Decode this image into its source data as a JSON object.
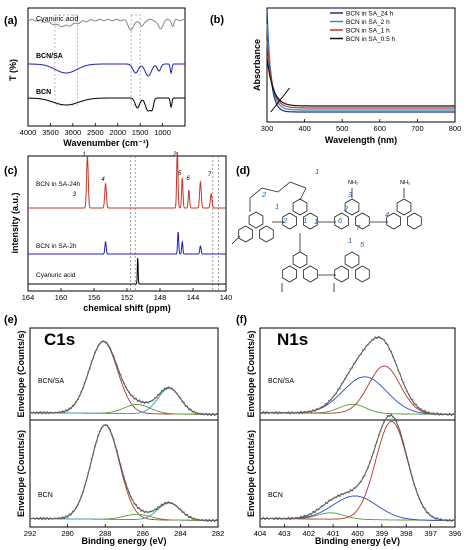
{
  "panels": {
    "a": "(a)",
    "b": "(b)",
    "c": "(c)",
    "d": "(d)",
    "e": "(e)",
    "f": "(f)"
  },
  "structure": {
    "labels": [
      "1",
      "2",
      "1",
      "2",
      "1",
      "2",
      "3",
      "6",
      "7",
      "1",
      "1",
      "5",
      "4"
    ],
    "nh2": "NH₂",
    "nh": "N\nH"
  },
  "chart_data": [
    {
      "id": "a",
      "type": "line",
      "xlabel": "Wavenumber (cm⁻¹)",
      "ylabel": "T (%)",
      "xlim": [
        4000,
        500
      ],
      "x_ticks": [
        4000,
        3500,
        3000,
        2500,
        2000,
        1500,
        1000
      ],
      "series": [
        {
          "name": "Cyanuric acid",
          "color": "#888888"
        },
        {
          "name": "BCN/SA",
          "color": "#1f1fb4"
        },
        {
          "name": "BCN",
          "color": "#000000"
        }
      ]
    },
    {
      "id": "b",
      "type": "line",
      "xlabel": "Wavelength (nm)",
      "ylabel": "Absorbance",
      "xlim": [
        300,
        800
      ],
      "x_ticks": [
        300,
        400,
        500,
        600,
        700,
        800
      ],
      "legend_position": "top-right",
      "series": [
        {
          "name": "BCN in SA_24 h",
          "color": "#1c2f8a"
        },
        {
          "name": "BCN in SA_2 h",
          "color": "#2f8ac9"
        },
        {
          "name": "BCN in SA_1 h",
          "color": "#c0392b"
        },
        {
          "name": "BCN in SA_0.5 h",
          "color": "#111111"
        }
      ]
    },
    {
      "id": "c",
      "type": "line",
      "xlabel": "chemical shift (ppm)",
      "ylabel": "intensity (a.u.)",
      "xlim": [
        164,
        140
      ],
      "x_ticks": [
        164,
        160,
        156,
        152,
        148,
        144,
        140
      ],
      "series": [
        {
          "name": "BCN in SA-24h",
          "color": "#c0392b"
        },
        {
          "name": "BCN in SA-2h",
          "color": "#1f1fb4"
        },
        {
          "name": "Cyanuric acid",
          "color": "#000000"
        }
      ],
      "peak_labels": [
        "1",
        "2",
        "3",
        "4",
        "5",
        "6",
        "7"
      ]
    },
    {
      "id": "e",
      "type": "line",
      "title": "C1s",
      "xlabel": "Binding energy (eV)",
      "ylabel": "Envelope (Counts/s)",
      "xlim": [
        292,
        282
      ],
      "x_ticks": [
        292,
        290,
        288,
        286,
        284,
        282
      ],
      "subplots": [
        {
          "label": "BCN/SA",
          "peaks": [
            {
              "center": 288.1,
              "height": 0.78
            },
            {
              "center": 286.3,
              "height": 0.1
            },
            {
              "center": 284.6,
              "height": 0.28
            }
          ]
        },
        {
          "label": "BCN",
          "peaks": [
            {
              "center": 288.0,
              "height": 0.88
            },
            {
              "center": 286.3,
              "height": 0.05
            },
            {
              "center": 284.6,
              "height": 0.16
            }
          ]
        }
      ]
    },
    {
      "id": "f",
      "type": "line",
      "title": "N1s",
      "xlabel": "Binding energy (eV)",
      "ylabel": "Envelope (Counts/s)",
      "xlim": [
        404,
        396
      ],
      "x_ticks": [
        404,
        403,
        402,
        401,
        400,
        399,
        398,
        397,
        396
      ],
      "subplots": [
        {
          "label": "BCN/SA",
          "peaks": [
            {
              "center": 400.2,
              "height": 0.1
            },
            {
              "center": 399.7,
              "height": 0.4
            },
            {
              "center": 398.9,
              "height": 0.52
            }
          ]
        },
        {
          "label": "BCN",
          "peaks": [
            {
              "center": 401.1,
              "height": 0.06
            },
            {
              "center": 400.1,
              "height": 0.22
            },
            {
              "center": 398.6,
              "height": 0.92
            }
          ]
        }
      ]
    }
  ]
}
